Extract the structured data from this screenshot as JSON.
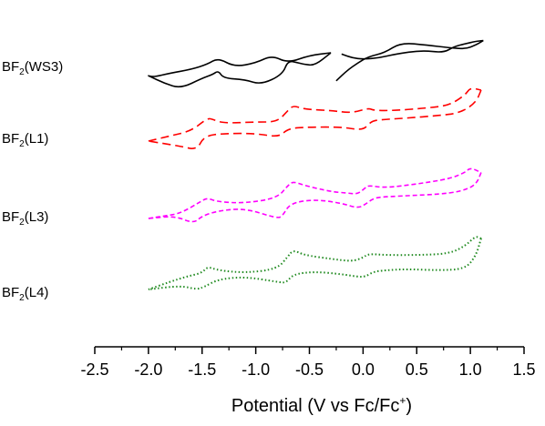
{
  "chart_data": {
    "type": "line",
    "xlabel": "Potential (V vs Fc/Fc⁺)",
    "xlabel_parts": {
      "main": "Potential (V vs Fc/Fc",
      "sup": "+",
      "end": ")"
    },
    "xlim": [
      -2.5,
      1.5
    ],
    "x_ticks": [
      "-2.5",
      "-2.0",
      "-1.5",
      "-1.0",
      "-0.5",
      "0.0",
      "0.5",
      "1.0",
      "1.5"
    ],
    "x_tick_values": [
      -2.5,
      -2.0,
      -1.5,
      -1.0,
      -0.5,
      0.0,
      0.5,
      1.0,
      1.5
    ],
    "y_axis_shown": false,
    "grid": false,
    "series_labels": [
      {
        "prefix": "BF",
        "sub": "2",
        "suffix": "(WS3)"
      },
      {
        "prefix": "BF",
        "sub": "2",
        "suffix": "(L1)"
      },
      {
        "prefix": "BF",
        "sub": "2",
        "suffix": "(L3)"
      },
      {
        "prefix": "BF",
        "sub": "2",
        "suffix": "(L4)"
      }
    ],
    "series": [
      {
        "name": "BF2(WS3)",
        "color": "#000000",
        "style": "solid",
        "segments": [
          {
            "x": [
              -0.3,
              -0.5,
              -0.7,
              -0.85,
              -1.0,
              -1.2,
              -1.35,
              -1.45,
              -1.6,
              -1.8,
              -1.95,
              -2.0
            ],
            "y": [
              0.5,
              0.4,
              0.1,
              0.4,
              0.1,
              -0.05,
              0.3,
              0.05,
              -0.15,
              -0.3,
              -0.45,
              -0.4
            ]
          },
          {
            "x": [
              -2.0,
              -1.85,
              -1.7,
              -1.5,
              -1.4,
              -1.35,
              -1.3,
              -1.1,
              -0.95,
              -0.75,
              -0.7,
              -0.6,
              -0.55,
              -0.45,
              -0.3
            ],
            "y": [
              -0.4,
              -0.7,
              -0.9,
              -0.5,
              -0.35,
              -0.2,
              -0.5,
              -0.55,
              -0.75,
              -0.35,
              0.2,
              0.1,
              0.05,
              0.0,
              0.5
            ]
          },
          {
            "x": [
              -0.2,
              -0.1,
              0.0,
              0.15,
              0.3,
              0.55,
              0.75,
              0.85,
              0.95,
              1.05,
              1.12
            ],
            "y": [
              0.45,
              0.3,
              0.25,
              0.3,
              0.45,
              0.6,
              0.5,
              0.75,
              0.85,
              0.95,
              0.98
            ]
          },
          {
            "x": [
              1.12,
              1.05,
              0.95,
              0.8,
              0.6,
              0.35,
              0.2,
              0.05,
              -0.05,
              -0.15,
              -0.25
            ],
            "y": [
              0.98,
              0.8,
              0.65,
              0.7,
              0.8,
              0.9,
              0.5,
              0.35,
              0.1,
              -0.2,
              -0.6
            ]
          }
        ]
      },
      {
        "name": "BF2(L1)",
        "color": "#ff0000",
        "style": "dash",
        "segments": [
          {
            "x": [
              -2.0,
              -1.8,
              -1.6,
              -1.45,
              -1.4,
              -1.3,
              -1.0,
              -0.8,
              -0.7,
              -0.65,
              -0.55,
              -0.3,
              -0.1,
              0.05,
              0.1,
              0.3,
              0.6,
              0.8,
              0.95,
              1.0,
              1.1
            ],
            "y": [
              0.0,
              0.2,
              0.4,
              0.9,
              0.85,
              0.7,
              0.75,
              0.75,
              1.2,
              1.4,
              1.25,
              1.2,
              1.1,
              1.3,
              1.2,
              1.2,
              1.3,
              1.4,
              1.8,
              2.1,
              2.0
            ]
          },
          {
            "x": [
              1.1,
              1.05,
              0.9,
              0.7,
              0.4,
              0.2,
              0.08,
              0.02,
              -0.05,
              -0.2,
              -0.5,
              -0.7,
              -0.78,
              -1.0,
              -1.3,
              -1.48,
              -1.55,
              -1.7,
              -2.0
            ],
            "y": [
              2.0,
              1.5,
              1.1,
              1.0,
              0.9,
              0.85,
              0.8,
              0.5,
              0.45,
              0.55,
              0.55,
              0.5,
              0.15,
              0.3,
              0.3,
              0.2,
              -0.35,
              -0.2,
              0.0
            ]
          }
        ]
      },
      {
        "name": "BF2(L3)",
        "color": "#ff00ff",
        "style": "short-dash",
        "segments": [
          {
            "x": [
              -2.0,
              -1.85,
              -1.7,
              -1.5,
              -1.45,
              -1.35,
              -1.1,
              -0.8,
              -0.7,
              -0.65,
              -0.55,
              -0.3,
              -0.15,
              -0.05,
              0.02,
              0.05,
              0.2,
              0.5,
              0.8,
              0.95,
              1.0,
              1.1
            ],
            "y": [
              0.0,
              0.1,
              0.2,
              0.7,
              0.8,
              0.65,
              0.6,
              0.8,
              1.3,
              1.45,
              1.3,
              1.05,
              1.0,
              0.95,
              1.2,
              1.3,
              1.2,
              1.35,
              1.55,
              1.8,
              2.0,
              1.8
            ]
          },
          {
            "x": [
              1.1,
              1.05,
              0.9,
              0.7,
              0.45,
              0.2,
              0.1,
              0.02,
              -0.05,
              -0.2,
              -0.45,
              -0.68,
              -0.75,
              -0.8,
              -1.1,
              -1.35,
              -1.5,
              -1.58,
              -1.75,
              -2.0
            ],
            "y": [
              1.8,
              1.3,
              1.05,
              0.95,
              0.9,
              0.85,
              0.8,
              0.55,
              0.4,
              0.6,
              0.75,
              0.6,
              0.1,
              0.0,
              0.4,
              0.3,
              0.1,
              -0.2,
              0.1,
              0.0
            ]
          }
        ]
      },
      {
        "name": "BF2(L4)",
        "color": "#228b22",
        "style": "dot",
        "segments": [
          {
            "x": [
              -2.0,
              -1.8,
              -1.65,
              -1.5,
              -1.45,
              -1.35,
              -1.1,
              -0.8,
              -0.7,
              -0.65,
              -0.55,
              -0.3,
              -0.1,
              0.0,
              0.05,
              0.2,
              0.5,
              0.8,
              0.95,
              1.05,
              1.1
            ],
            "y": [
              0.0,
              0.3,
              0.5,
              0.65,
              0.9,
              0.75,
              0.65,
              0.8,
              1.3,
              1.55,
              1.35,
              1.2,
              1.1,
              1.25,
              1.4,
              1.35,
              1.35,
              1.4,
              1.7,
              2.1,
              2.0
            ]
          },
          {
            "x": [
              1.1,
              1.05,
              0.95,
              0.7,
              0.4,
              0.2,
              0.1,
              0.02,
              -0.05,
              -0.2,
              -0.45,
              -0.65,
              -0.72,
              -0.8,
              -1.1,
              -1.35,
              -1.48,
              -1.55,
              -1.7,
              -2.0
            ],
            "y": [
              2.0,
              1.3,
              0.8,
              0.75,
              0.8,
              0.75,
              0.7,
              0.5,
              0.5,
              0.6,
              0.7,
              0.6,
              0.25,
              0.3,
              0.5,
              0.4,
              0.1,
              0.0,
              0.15,
              0.0
            ]
          }
        ]
      }
    ]
  }
}
